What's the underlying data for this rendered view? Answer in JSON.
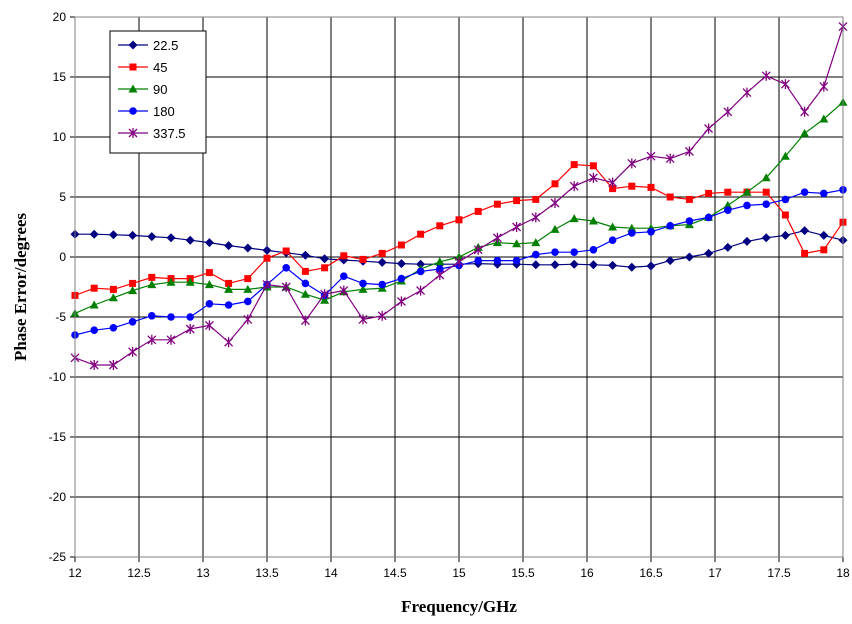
{
  "chart_data": {
    "type": "line",
    "title": "",
    "xlabel": "Frequency/GHz",
    "ylabel": "Phase Error/degrees",
    "xlim": [
      12,
      18
    ],
    "ylim": [
      -25,
      20
    ],
    "xticks": [
      12,
      12.5,
      13,
      13.5,
      14,
      14.5,
      15,
      15.5,
      16,
      16.5,
      17,
      17.5,
      18
    ],
    "xtick_labels": [
      "12",
      "12.5",
      "13",
      "13.5",
      "14",
      "14.5",
      "15",
      "15.5",
      "16",
      "16.5",
      "17",
      "17.5",
      "18"
    ],
    "yticks": [
      -25,
      -20,
      -15,
      -10,
      -5,
      0,
      5,
      10,
      15,
      20
    ],
    "ytick_labels": [
      "-25",
      "-20",
      "-15",
      "-10",
      "-5",
      "0",
      "5",
      "10",
      "15",
      "20"
    ],
    "grid": true,
    "legend_position": "top-left",
    "x": [
      12.0,
      12.15,
      12.3,
      12.45,
      12.6,
      12.75,
      12.9,
      13.05,
      13.2,
      13.35,
      13.5,
      13.65,
      13.8,
      13.95,
      14.1,
      14.25,
      14.4,
      14.55,
      14.7,
      14.85,
      15.0,
      15.15,
      15.3,
      15.45,
      15.6,
      15.75,
      15.9,
      16.05,
      16.2,
      16.35,
      16.5,
      16.65,
      16.8,
      16.95,
      17.1,
      17.25,
      17.4,
      17.55,
      17.7,
      17.85,
      18.0
    ],
    "series": [
      {
        "name": "22.5",
        "color": "#000080",
        "marker": "diamond",
        "values": [
          1.9,
          1.9,
          1.85,
          1.8,
          1.7,
          1.6,
          1.4,
          1.2,
          0.95,
          0.75,
          0.55,
          0.35,
          0.15,
          -0.15,
          -0.25,
          -0.35,
          -0.45,
          -0.55,
          -0.6,
          -0.6,
          -0.6,
          -0.55,
          -0.6,
          -0.6,
          -0.65,
          -0.65,
          -0.6,
          -0.65,
          -0.7,
          -0.85,
          -0.75,
          -0.3,
          0.0,
          0.3,
          0.8,
          1.3,
          1.6,
          1.8,
          2.2,
          1.8,
          1.4
        ]
      },
      {
        "name": "45",
        "color": "#ff0000",
        "marker": "square",
        "values": [
          -3.2,
          -2.6,
          -2.7,
          -2.2,
          -1.7,
          -1.8,
          -1.8,
          -1.3,
          -2.2,
          -1.8,
          -0.1,
          0.5,
          -1.2,
          -0.9,
          0.1,
          -0.2,
          0.3,
          1.0,
          1.9,
          2.6,
          3.1,
          3.8,
          4.4,
          4.7,
          4.8,
          6.1,
          7.7,
          7.6,
          5.7,
          5.9,
          5.8,
          5.0,
          4.8,
          5.3,
          5.4,
          5.4,
          5.4,
          3.5,
          0.3,
          0.6,
          2.9
        ]
      },
      {
        "name": "90",
        "color": "#008000",
        "marker": "triangle",
        "values": [
          -4.7,
          -4.0,
          -3.4,
          -2.8,
          -2.3,
          -2.1,
          -2.1,
          -2.3,
          -2.7,
          -2.7,
          -2.5,
          -2.5,
          -3.1,
          -3.6,
          -2.9,
          -2.7,
          -2.6,
          -2.0,
          -1.0,
          -0.4,
          0.0,
          0.8,
          1.2,
          1.1,
          1.2,
          2.3,
          3.2,
          3.0,
          2.5,
          2.4,
          2.4,
          2.6,
          2.7,
          3.3,
          4.3,
          5.4,
          6.6,
          8.4,
          10.3,
          11.5,
          12.9
        ]
      },
      {
        "name": "180",
        "color": "#0000ff",
        "marker": "circle",
        "values": [
          -6.5,
          -6.1,
          -5.9,
          -5.4,
          -4.9,
          -5.0,
          -5.0,
          -3.9,
          -4.0,
          -3.7,
          -2.3,
          -0.9,
          -2.2,
          -3.2,
          -1.6,
          -2.2,
          -2.3,
          -1.8,
          -1.2,
          -1.0,
          -0.7,
          -0.3,
          -0.3,
          -0.3,
          0.2,
          0.4,
          0.4,
          0.6,
          1.4,
          2.0,
          2.1,
          2.6,
          3.0,
          3.3,
          3.9,
          4.3,
          4.4,
          4.8,
          5.4,
          5.3,
          5.6
        ]
      },
      {
        "name": "337.5",
        "color": "#800080",
        "marker": "star",
        "values": [
          -8.4,
          -9.0,
          -9.0,
          -7.9,
          -6.9,
          -6.9,
          -6.0,
          -5.7,
          -7.1,
          -5.2,
          -2.3,
          -2.5,
          -5.3,
          -3.1,
          -2.8,
          -5.2,
          -4.9,
          -3.7,
          -2.8,
          -1.5,
          -0.4,
          0.6,
          1.6,
          2.5,
          3.3,
          4.5,
          5.9,
          6.6,
          6.2,
          7.8,
          8.4,
          8.2,
          8.8,
          10.7,
          12.1,
          13.7,
          15.1,
          14.4,
          12.1,
          14.2,
          19.2
        ]
      }
    ]
  }
}
